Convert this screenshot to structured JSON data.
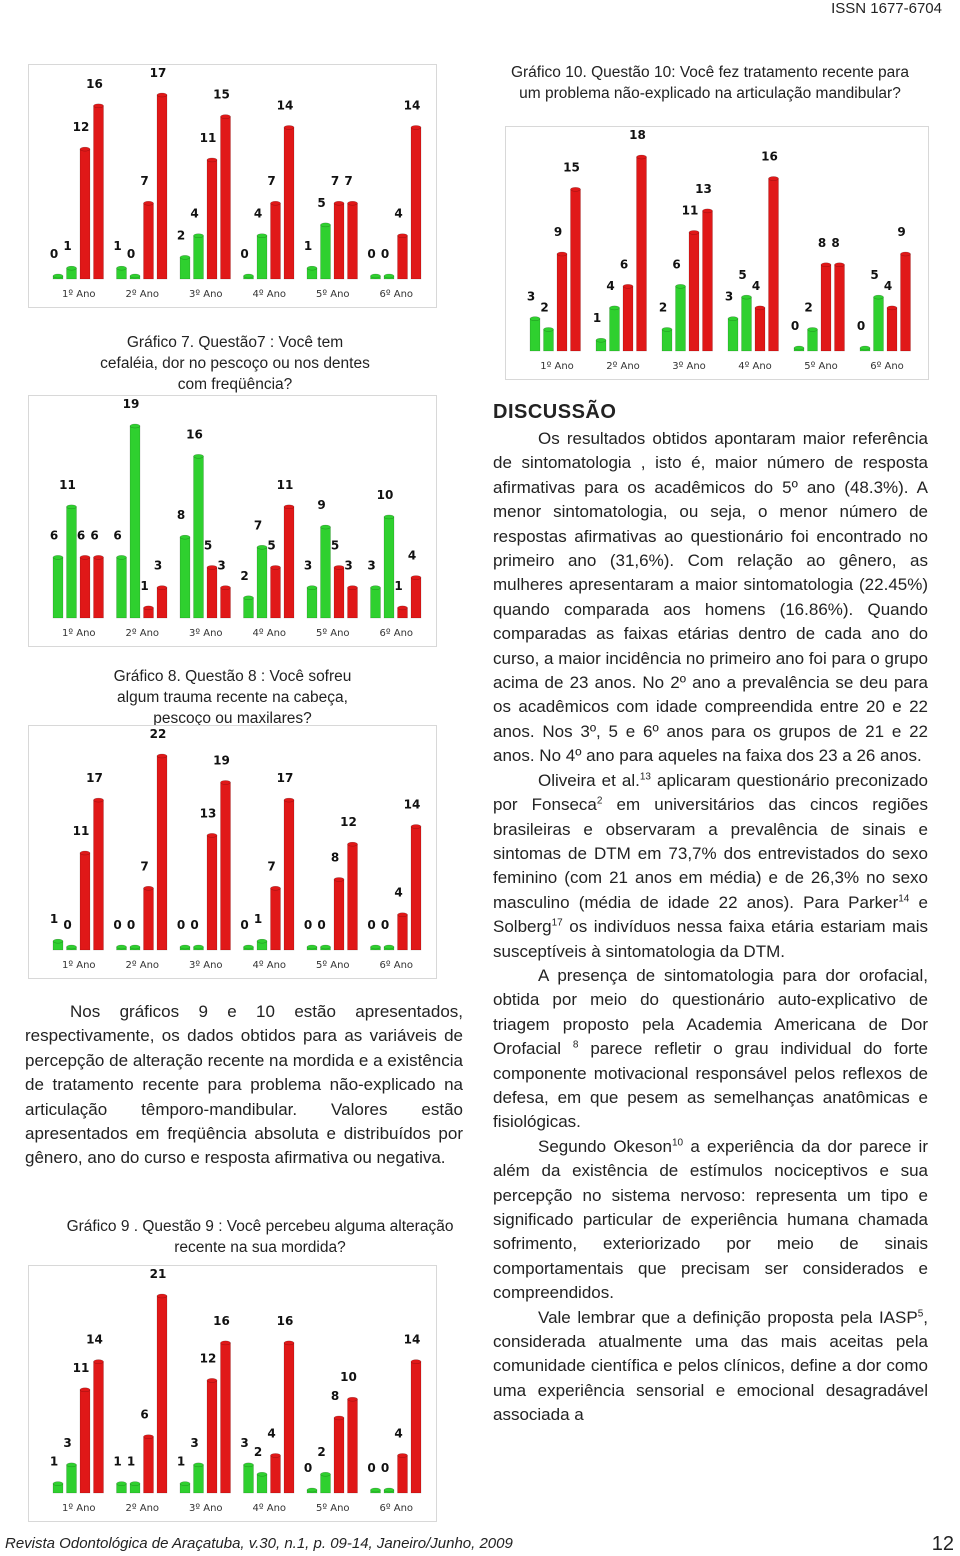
{
  "header": {
    "issn": "ISSN 1677-6704"
  },
  "chart_data": [
    {
      "type": "bar",
      "categories": [
        "1º Ano",
        "2º Ano",
        "3º Ano",
        "4º Ano",
        "5º Ano",
        "6º Ano"
      ],
      "series": [
        {
          "color": "#2fd02f",
          "values": [
            0,
            1,
            2,
            0,
            1,
            0
          ]
        },
        {
          "color": "#2fd02f",
          "values": [
            1,
            0,
            4,
            4,
            5,
            0
          ]
        },
        {
          "color": "#e01818",
          "values": [
            12,
            7,
            11,
            7,
            7,
            4
          ]
        },
        {
          "color": "#e01818",
          "values": [
            16,
            17,
            15,
            14,
            7,
            14
          ]
        }
      ]
    },
    {
      "type": "bar",
      "title": "Gráfico 10. Questão 10: Você fez tratamento recente para um problema não-explicado na articulação mandibular?",
      "categories": [
        "1º Ano",
        "2º Ano",
        "3º Ano",
        "4º Ano",
        "5º Ano",
        "6º Ano"
      ],
      "series": [
        {
          "color": "#2fd02f",
          "values": [
            3,
            1,
            2,
            3,
            0,
            0
          ]
        },
        {
          "color": "#2fd02f",
          "values": [
            2,
            4,
            6,
            5,
            2,
            5
          ]
        },
        {
          "color": "#e01818",
          "values": [
            9,
            6,
            11,
            4,
            8,
            4
          ]
        },
        {
          "color": "#e01818",
          "values": [
            15,
            18,
            13,
            16,
            8,
            9
          ]
        }
      ]
    },
    {
      "type": "bar",
      "title": "Gráfico 7. Questão7 : Você tem cefaléia, dor no pescoço ou nos dentes com freqüência?",
      "categories": [
        "1º Ano",
        "2º Ano",
        "3º Ano",
        "4º Ano",
        "5º Ano",
        "6º Ano"
      ],
      "series": [
        {
          "color": "#2fd02f",
          "values": [
            6,
            6,
            8,
            2,
            3,
            3
          ]
        },
        {
          "color": "#2fd02f",
          "values": [
            11,
            19,
            16,
            7,
            9,
            10
          ]
        },
        {
          "color": "#e01818",
          "values": [
            6,
            1,
            5,
            5,
            5,
            1
          ]
        },
        {
          "color": "#e01818",
          "values": [
            6,
            3,
            3,
            11,
            3,
            4
          ]
        }
      ]
    },
    {
      "type": "bar",
      "title": "Gráfico 8. Questão 8 : Você sofreu algum trauma recente na cabeça, pescoço ou maxilares?",
      "categories": [
        "1º Ano",
        "2º Ano",
        "3º Ano",
        "4º Ano",
        "5º Ano",
        "6º Ano"
      ],
      "series": [
        {
          "color": "#2fd02f",
          "values": [
            1,
            0,
            0,
            0,
            0,
            0
          ]
        },
        {
          "color": "#2fd02f",
          "values": [
            0,
            0,
            0,
            1,
            0,
            0
          ]
        },
        {
          "color": "#e01818",
          "values": [
            11,
            7,
            13,
            7,
            8,
            4
          ]
        },
        {
          "color": "#e01818",
          "values": [
            17,
            22,
            19,
            17,
            12,
            14
          ]
        }
      ]
    },
    {
      "type": "bar",
      "title": "Gráfico 9 . Questão 9 : Você percebeu alguma alteração recente na sua mordida?",
      "categories": [
        "1º Ano",
        "2º Ano",
        "3º Ano",
        "4º Ano",
        "5º Ano",
        "6º Ano"
      ],
      "series": [
        {
          "color": "#2fd02f",
          "values": [
            1,
            1,
            1,
            3,
            0,
            0
          ]
        },
        {
          "color": "#2fd02f",
          "values": [
            3,
            1,
            3,
            2,
            2,
            0
          ]
        },
        {
          "color": "#e01818",
          "values": [
            11,
            6,
            12,
            4,
            8,
            4
          ]
        },
        {
          "color": "#e01818",
          "values": [
            14,
            21,
            16,
            16,
            10,
            14
          ]
        }
      ]
    }
  ],
  "body_text": "Nos gráficos 9 e 10 estão apresentados, respectivamente, os dados obtidos para as variáveis de percepção de alteração recente na mordida e a existência de tratamento recente para problema não-explicado na articulação têmporo-mandibular. Valores estão apresentados em freqüência absoluta e distribuídos por gênero, ano do curso e resposta afirmativa ou negativa.",
  "discussion": {
    "heading": "DISCUSSÃO",
    "paragraphs": [
      [
        "Os resultados obtidos apontaram maior referência de sintomatologia , isto é, maior número de resposta afirmativas para os acadêmicos do 5º ano (48.3%). A menor sintomatologia, ou seja, o menor número de respostas afirmativas ao questionário foi encontrado no primeiro ano (31,6%). Com relação ao gênero, as mulheres apresentaram a maior sintomatologia (22.45%) quando comparada aos homens (16.86%). Quando comparadas as faixas etárias dentro de cada ano do curso, a maior incidência no primeiro ano foi para o grupo acima de 23 anos. No 2º ano a prevalência se deu para os acadêmicos com idade compreendida entre 20 e 22 anos. Nos 3º, 5 e 6º anos para os grupos de 21 e 22 anos. No 4º ano para aqueles na faixa dos 23 a 26 anos."
      ],
      [
        "Oliveira et al.",
        {
          "sup": "13"
        },
        " aplicaram questionário preconizado por Fonseca",
        {
          "sup": "2"
        },
        " em universitários das cincos regiões brasileiras e observaram a prevalência de sinais e sintomas de DTM em 73,7% dos entrevistados do sexo feminino (com 21 anos em média) e de 26,3% no sexo masculino (média de idade 22 anos). Para Parker",
        {
          "sup": "14"
        },
        " e Solberg",
        {
          "sup": "17"
        },
        " os indivíduos nessa faixa etária estariam mais susceptíveis à sintomatologia da DTM."
      ],
      [
        "A presença de sintomatologia para dor orofacial, obtida por meio do questionário auto-explicativo de triagem proposto pela Academia Americana de Dor Orofacial ",
        {
          "sup": "8"
        },
        " parece refletir o grau individual do forte componente motivacional responsável pelos reflexos de defesa, em que pesem as semelhanças anatômicas e fisiológicas."
      ],
      [
        "Segundo Okeson",
        {
          "sup": "10"
        },
        " a experiência da dor parece ir além da existência de estímulos nociceptivos e sua percepção no sistema nervoso: representa um tipo e significado particular de experiência humana chamada sofrimento, exteriorizado por meio de sinais comportamentais que precisam ser considerados e compreendidos."
      ],
      [
        "Vale lembrar que a definição proposta pela IASP",
        {
          "sup": "5"
        },
        ", considerada atualmente uma das mais aceitas pela comunidade científica e pelos clínicos, define a dor como uma experiência sensorial e emocional desagradável associada a"
      ]
    ]
  },
  "footer": {
    "citation": "Revista Odontológica de Araçatuba, v.30, n.1, p. 09-14, Janeiro/Junho, 2009",
    "page": "12"
  }
}
